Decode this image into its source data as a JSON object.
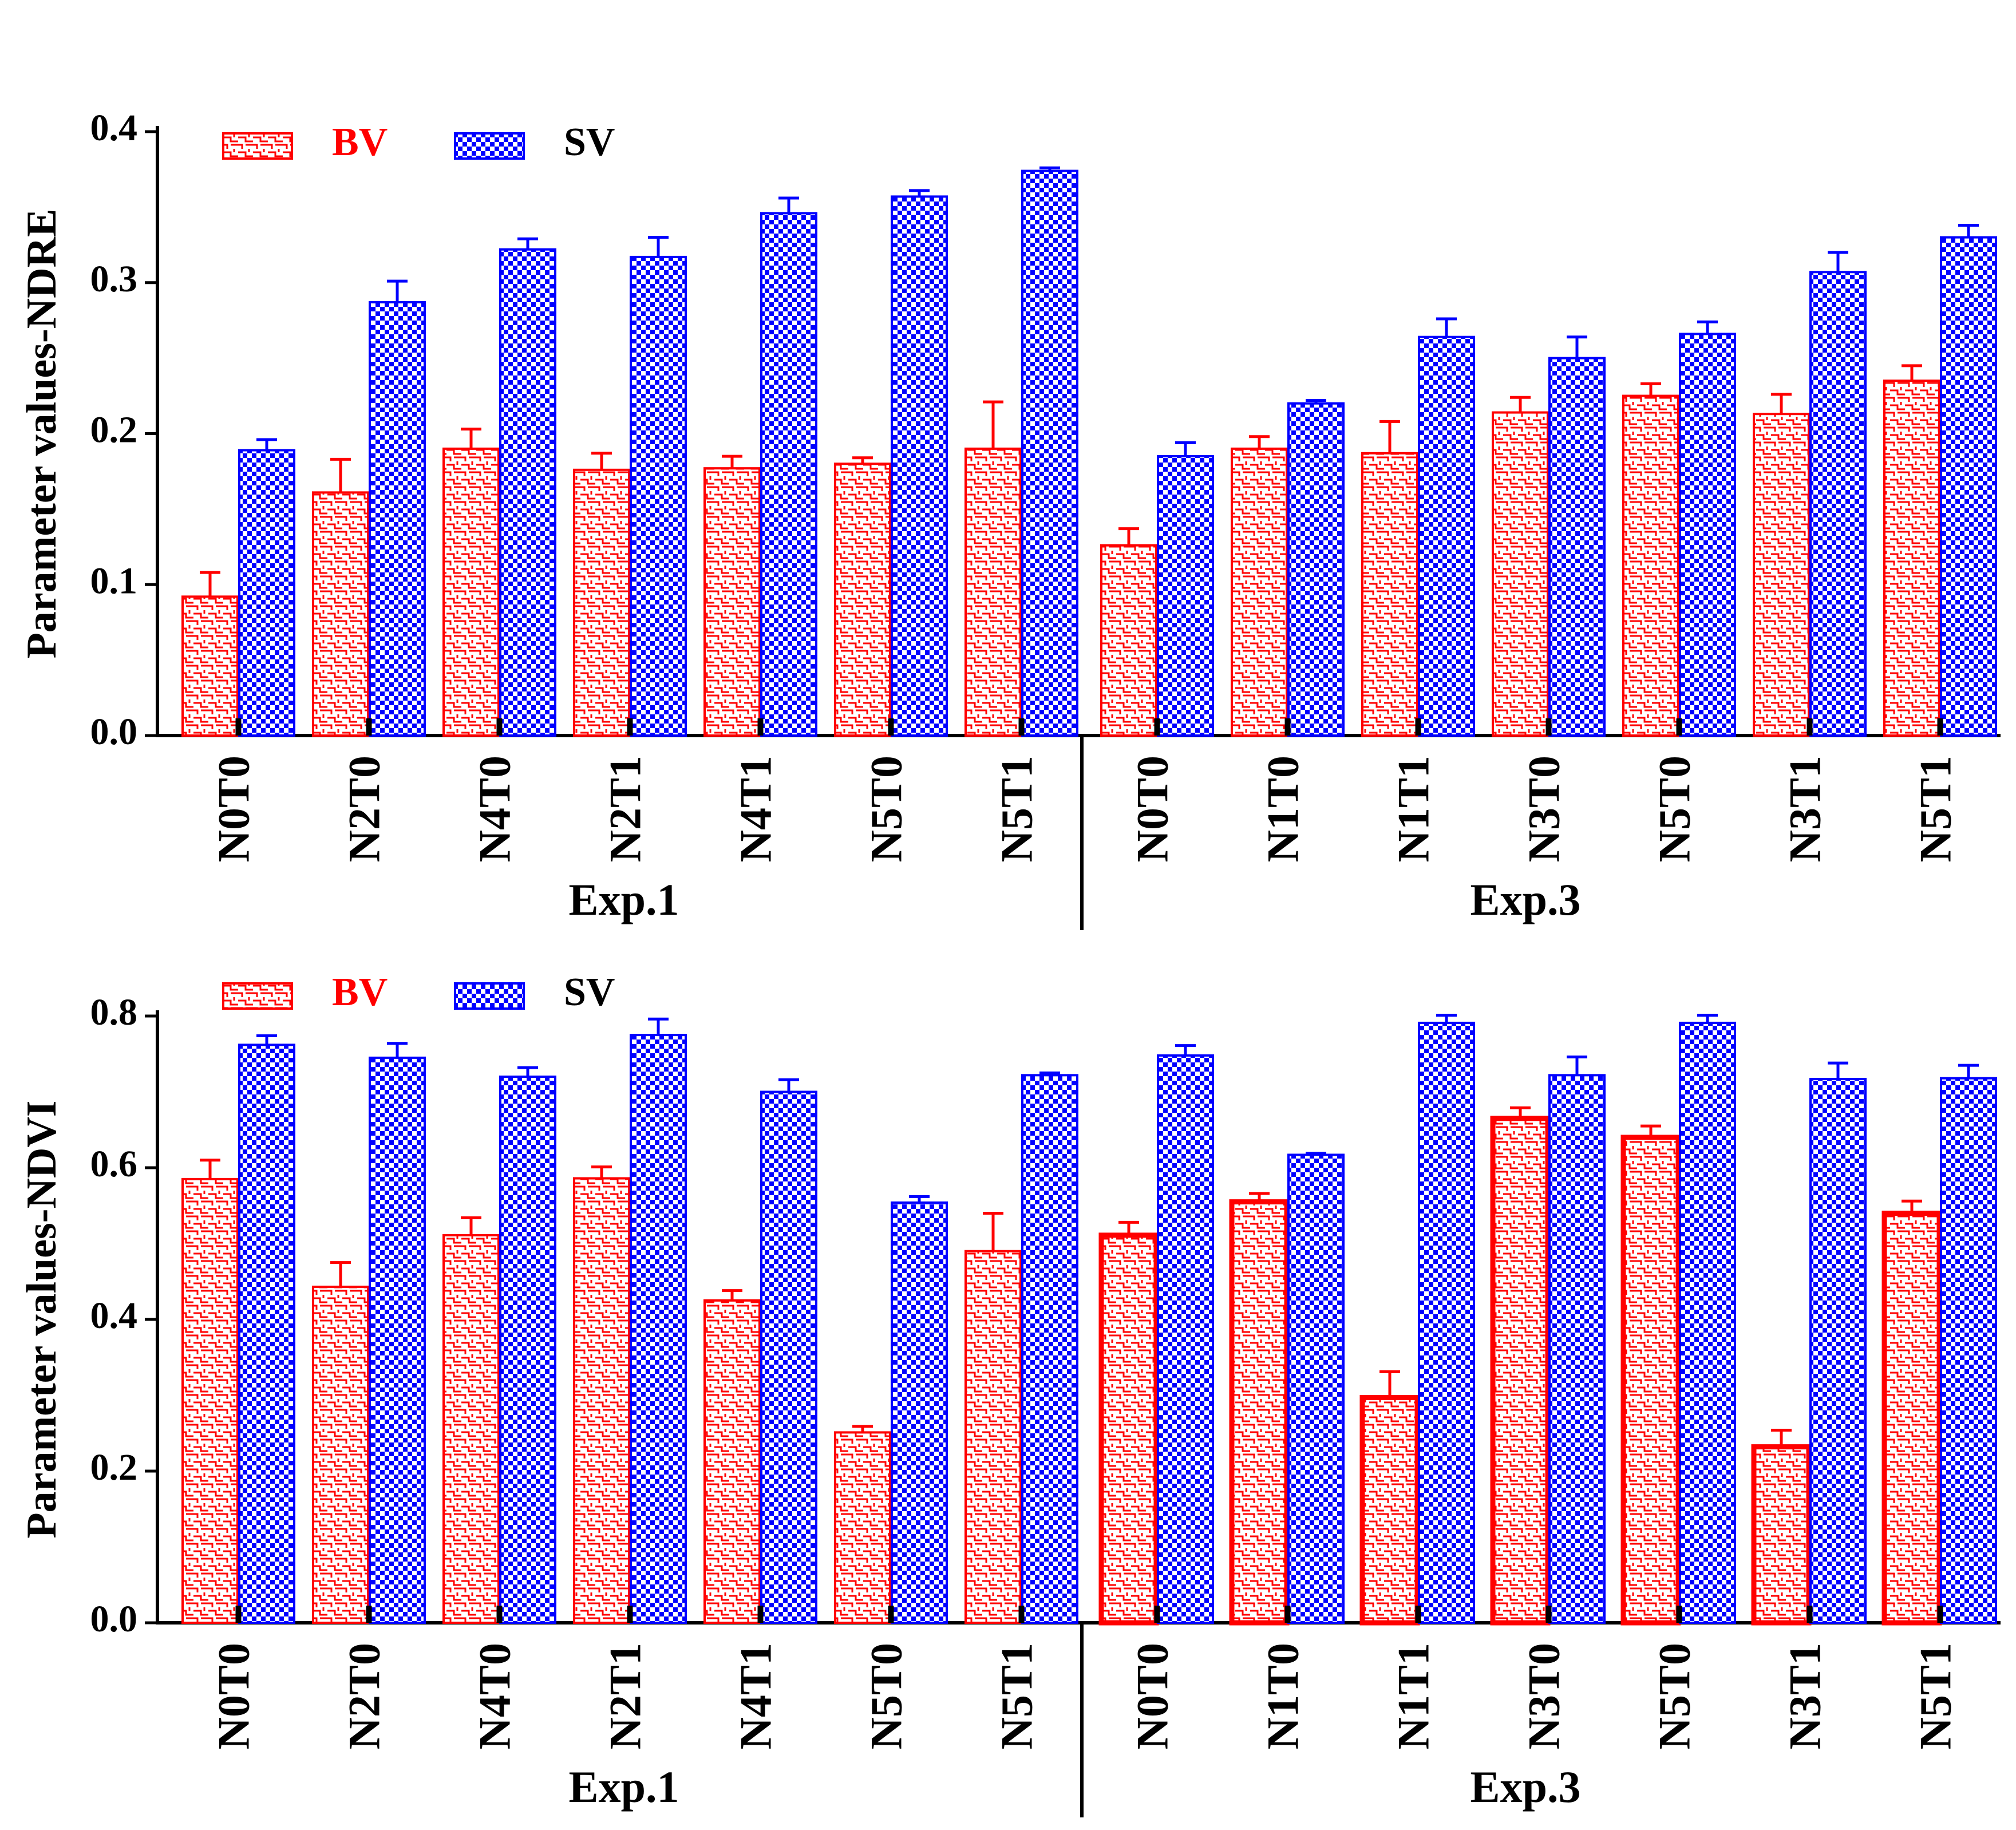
{
  "colors": {
    "bv": "#ff0000",
    "sv": "#0000ff",
    "axis": "#000000"
  },
  "legend": {
    "bv_label": "BV",
    "sv_label": "SV"
  },
  "chart_data": [
    {
      "type": "bar",
      "ylabel": "Parameter values-NDRE",
      "ylim": [
        0,
        0.4
      ],
      "yticks": [
        "0.0",
        "0.1",
        "0.2",
        "0.3",
        "0.4"
      ],
      "tick_values": [
        0,
        0.1,
        0.2,
        0.3,
        0.4
      ],
      "groups": [
        {
          "label": "Exp.1",
          "categories": [
            "N0T0",
            "N2T0",
            "N4T0",
            "N2T1",
            "N4T1",
            "N5T0",
            "N5T1"
          ]
        },
        {
          "label": "Exp.3",
          "categories": [
            "N0T0",
            "N1T0",
            "N1T1",
            "N3T0",
            "N5T0",
            "N3T1",
            "N5T1"
          ]
        }
      ],
      "series": [
        {
          "name": "BV",
          "values": [
            0.092,
            0.161,
            0.19,
            0.176,
            0.177,
            0.18,
            0.19,
            0.126,
            0.19,
            0.187,
            0.214,
            0.225,
            0.213,
            0.235
          ],
          "errors": [
            0.016,
            0.022,
            0.013,
            0.011,
            0.008,
            0.004,
            0.031,
            0.011,
            0.008,
            0.021,
            0.01,
            0.008,
            0.013,
            0.01
          ]
        },
        {
          "name": "SV",
          "values": [
            0.189,
            0.287,
            0.322,
            0.317,
            0.346,
            0.357,
            0.374,
            0.185,
            0.22,
            0.264,
            0.25,
            0.266,
            0.307,
            0.33
          ],
          "errors": [
            0.007,
            0.014,
            0.007,
            0.013,
            0.01,
            0.004,
            0.002,
            0.009,
            0.002,
            0.012,
            0.014,
            0.008,
            0.013,
            0.008
          ]
        }
      ]
    },
    {
      "type": "bar",
      "ylabel": "Parameter values-NDVI",
      "ylim": [
        0,
        0.8
      ],
      "yticks": [
        "0.0",
        "0.2",
        "0.4",
        "0.6",
        "0.8"
      ],
      "tick_values": [
        0,
        0.2,
        0.4,
        0.6,
        0.8
      ],
      "groups": [
        {
          "label": "Exp.1",
          "categories": [
            "N0T0",
            "N2T0",
            "N4T0",
            "N2T1",
            "N4T1",
            "N5T0",
            "N5T1"
          ]
        },
        {
          "label": "Exp.3",
          "categories": [
            "N0T0",
            "N1T0",
            "N1T1",
            "N3T0",
            "N5T0",
            "N3T1",
            "N5T1"
          ]
        }
      ],
      "series": [
        {
          "name": "BV",
          "values": [
            0.585,
            0.443,
            0.511,
            0.586,
            0.425,
            0.251,
            0.49,
            0.511,
            0.555,
            0.297,
            0.665,
            0.64,
            0.232,
            0.54
          ],
          "errors": [
            0.025,
            0.032,
            0.023,
            0.015,
            0.013,
            0.008,
            0.05,
            0.017,
            0.011,
            0.034,
            0.014,
            0.015,
            0.022,
            0.016
          ]
        },
        {
          "name": "SV",
          "values": [
            0.762,
            0.745,
            0.72,
            0.775,
            0.7,
            0.554,
            0.722,
            0.748,
            0.617,
            0.791,
            0.722,
            0.791,
            0.717,
            0.718
          ],
          "errors": [
            0.012,
            0.019,
            0.012,
            0.021,
            0.016,
            0.008,
            0.003,
            0.013,
            0.002,
            0.01,
            0.024,
            0.01,
            0.021,
            0.017
          ]
        }
      ]
    }
  ]
}
